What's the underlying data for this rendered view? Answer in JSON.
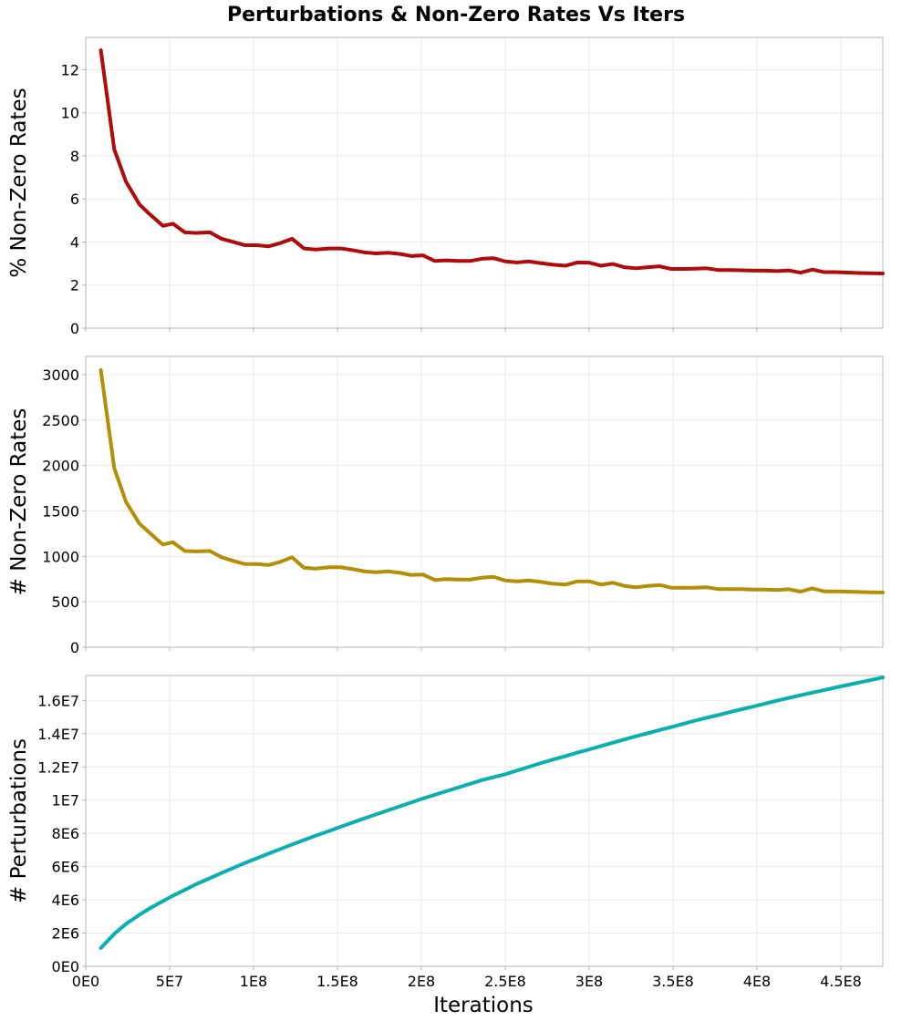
{
  "title": "Perturbations & Non-Zero Rates Vs Iters",
  "xlabel": "Iterations",
  "x_ticks": [
    {
      "value": 0,
      "label": "0E0"
    },
    {
      "value": 50000000,
      "label": "5E7"
    },
    {
      "value": 100000000,
      "label": "1E8"
    },
    {
      "value": 150000000,
      "label": "1.5E8"
    },
    {
      "value": 200000000,
      "label": "2E8"
    },
    {
      "value": 250000000,
      "label": "2.5E8"
    },
    {
      "value": 300000000,
      "label": "3E8"
    },
    {
      "value": 350000000,
      "label": "3.5E8"
    },
    {
      "value": 400000000,
      "label": "4E8"
    },
    {
      "value": 450000000,
      "label": "4.5E8"
    }
  ],
  "chart_data": [
    {
      "type": "line",
      "ylabel": "% Non-Zero Rates",
      "xlim": [
        0,
        475000000
      ],
      "ylim": [
        0,
        13.5
      ],
      "grid": true,
      "y_ticks": [
        {
          "value": 0,
          "label": "0"
        },
        {
          "value": 2,
          "label": "2"
        },
        {
          "value": 4,
          "label": "4"
        },
        {
          "value": 6,
          "label": "6"
        },
        {
          "value": 8,
          "label": "8"
        },
        {
          "value": 10,
          "label": "10"
        },
        {
          "value": 12,
          "label": "12"
        }
      ],
      "color": "#b10a0a",
      "x": [
        9000000,
        17000000,
        24000000,
        32000000,
        38000000,
        46000000,
        52000000,
        59000000,
        66000000,
        74000000,
        81000000,
        88000000,
        95000000,
        102000000,
        109000000,
        116000000,
        123000000,
        130000000,
        137000000,
        145000000,
        152000000,
        159000000,
        166000000,
        173000000,
        180000000,
        187000000,
        194000000,
        201000000,
        208000000,
        215000000,
        222000000,
        229000000,
        236000000,
        243000000,
        250000000,
        257000000,
        264000000,
        271000000,
        278000000,
        286000000,
        293000000,
        300000000,
        307000000,
        314000000,
        321000000,
        328000000,
        335000000,
        342000000,
        349000000,
        356000000,
        363000000,
        370000000,
        377000000,
        384000000,
        391000000,
        398000000,
        405000000,
        412000000,
        419000000,
        426000000,
        433000000,
        440000000,
        447000000,
        454000000,
        461000000,
        468000000,
        475000000
      ],
      "y": [
        12.9,
        8.3,
        6.8,
        5.75,
        5.3,
        4.75,
        4.85,
        4.45,
        4.42,
        4.45,
        4.15,
        4.0,
        3.85,
        3.85,
        3.8,
        3.95,
        4.15,
        3.7,
        3.65,
        3.7,
        3.7,
        3.62,
        3.52,
        3.47,
        3.5,
        3.45,
        3.35,
        3.38,
        3.12,
        3.15,
        3.12,
        3.12,
        3.22,
        3.25,
        3.1,
        3.05,
        3.1,
        3.02,
        2.95,
        2.9,
        3.05,
        3.04,
        2.9,
        2.98,
        2.83,
        2.78,
        2.83,
        2.87,
        2.75,
        2.75,
        2.76,
        2.78,
        2.7,
        2.7,
        2.69,
        2.67,
        2.67,
        2.65,
        2.68,
        2.58,
        2.72,
        2.6,
        2.6,
        2.58,
        2.56,
        2.55,
        2.54
      ]
    },
    {
      "type": "line",
      "ylabel": "# Non-Zero Rates",
      "xlim": [
        0,
        475000000
      ],
      "ylim": [
        0,
        3200
      ],
      "grid": true,
      "y_ticks": [
        {
          "value": 0,
          "label": "0"
        },
        {
          "value": 500,
          "label": "500"
        },
        {
          "value": 1000,
          "label": "1000"
        },
        {
          "value": 1500,
          "label": "1500"
        },
        {
          "value": 2000,
          "label": "2000"
        },
        {
          "value": 2500,
          "label": "2500"
        },
        {
          "value": 3000,
          "label": "3000"
        }
      ],
      "color": "#b38f07",
      "x": [
        9000000,
        17000000,
        24000000,
        32000000,
        38000000,
        46000000,
        52000000,
        59000000,
        66000000,
        74000000,
        81000000,
        88000000,
        95000000,
        102000000,
        109000000,
        116000000,
        123000000,
        130000000,
        137000000,
        145000000,
        152000000,
        159000000,
        166000000,
        173000000,
        180000000,
        187000000,
        194000000,
        201000000,
        208000000,
        215000000,
        222000000,
        229000000,
        236000000,
        243000000,
        250000000,
        257000000,
        264000000,
        271000000,
        278000000,
        286000000,
        293000000,
        300000000,
        307000000,
        314000000,
        321000000,
        328000000,
        335000000,
        342000000,
        349000000,
        356000000,
        363000000,
        370000000,
        377000000,
        384000000,
        391000000,
        398000000,
        405000000,
        412000000,
        419000000,
        426000000,
        433000000,
        440000000,
        447000000,
        454000000,
        461000000,
        468000000,
        475000000
      ],
      "y": [
        3050,
        1970,
        1600,
        1360,
        1260,
        1130,
        1155,
        1060,
        1055,
        1060,
        990,
        950,
        915,
        915,
        905,
        940,
        990,
        875,
        865,
        880,
        880,
        860,
        835,
        825,
        835,
        820,
        795,
        800,
        740,
        750,
        745,
        745,
        765,
        775,
        735,
        725,
        735,
        720,
        700,
        690,
        725,
        725,
        690,
        710,
        675,
        660,
        675,
        685,
        655,
        655,
        655,
        660,
        640,
        640,
        640,
        635,
        635,
        630,
        638,
        612,
        648,
        615,
        615,
        612,
        608,
        605,
        603
      ]
    },
    {
      "type": "line",
      "ylabel": "# Perturbations",
      "xlim": [
        0,
        475000000
      ],
      "ylim": [
        0,
        17500000
      ],
      "grid": true,
      "y_ticks": [
        {
          "value": 0,
          "label": "0E0"
        },
        {
          "value": 2000000,
          "label": "2E6"
        },
        {
          "value": 4000000,
          "label": "4E6"
        },
        {
          "value": 6000000,
          "label": "6E6"
        },
        {
          "value": 8000000,
          "label": "8E6"
        },
        {
          "value": 10000000,
          "label": "1E7"
        },
        {
          "value": 12000000,
          "label": "1.2E7"
        },
        {
          "value": 14000000,
          "label": "1.4E7"
        },
        {
          "value": 16000000,
          "label": "1.6E7"
        }
      ],
      "color": "#0aafaf",
      "x": [
        9000000,
        17000000,
        24000000,
        32000000,
        38000000,
        46000000,
        52000000,
        59000000,
        66000000,
        74000000,
        81000000,
        88000000,
        95000000,
        102000000,
        109000000,
        116000000,
        123000000,
        130000000,
        137000000,
        145000000,
        152000000,
        159000000,
        166000000,
        173000000,
        180000000,
        187000000,
        194000000,
        201000000,
        208000000,
        215000000,
        222000000,
        229000000,
        236000000,
        243000000,
        250000000,
        257000000,
        264000000,
        271000000,
        278000000,
        286000000,
        293000000,
        300000000,
        307000000,
        314000000,
        321000000,
        328000000,
        335000000,
        342000000,
        349000000,
        356000000,
        363000000,
        370000000,
        377000000,
        384000000,
        391000000,
        398000000,
        405000000,
        412000000,
        419000000,
        426000000,
        433000000,
        440000000,
        447000000,
        454000000,
        461000000,
        468000000,
        475000000
      ],
      "y": [
        1100000,
        1950000,
        2550000,
        3100000,
        3480000,
        3920000,
        4250000,
        4600000,
        4950000,
        5300000,
        5620000,
        5920000,
        6220000,
        6500000,
        6780000,
        7060000,
        7330000,
        7600000,
        7860000,
        8140000,
        8400000,
        8650000,
        8900000,
        9140000,
        9380000,
        9620000,
        9860000,
        10100000,
        10320000,
        10540000,
        10760000,
        10980000,
        11200000,
        11380000,
        11560000,
        11780000,
        12000000,
        12220000,
        12430000,
        12650000,
        12860000,
        13050000,
        13250000,
        13450000,
        13650000,
        13850000,
        14030000,
        14220000,
        14400000,
        14590000,
        14780000,
        14950000,
        15120000,
        15300000,
        15470000,
        15640000,
        15810000,
        15990000,
        16150000,
        16310000,
        16470000,
        16620000,
        16780000,
        16930000,
        17080000,
        17230000,
        17380000
      ]
    }
  ]
}
